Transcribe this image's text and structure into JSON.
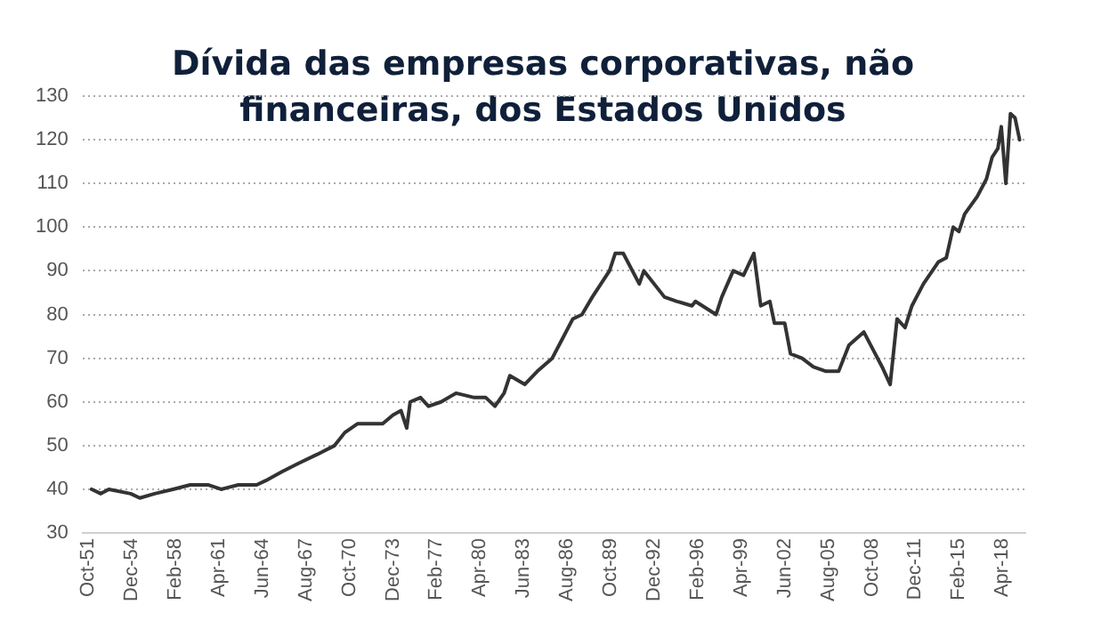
{
  "chart_data": {
    "type": "line",
    "title": "Dívida das empresas corporativas, não financeiras, dos Estados Unidos",
    "x": [
      "1952-01",
      "1952-09",
      "1953-04",
      "1954-11",
      "1955-07",
      "1956-08",
      "1957-12",
      "1959-03",
      "1960-07",
      "1961-06",
      "1962-09",
      "1964-01",
      "1964-09",
      "1965-11",
      "1967-02",
      "1968-06",
      "1969-09",
      "1970-06",
      "1971-05",
      "1972-06",
      "1973-03",
      "1973-12",
      "1974-07",
      "1974-12",
      "1975-03",
      "1975-12",
      "1976-07",
      "1977-06",
      "1978-07",
      "1979-11",
      "1980-09",
      "1981-05",
      "1982-01",
      "1982-06",
      "1983-07",
      "1984-06",
      "1985-07",
      "1986-03",
      "1987-01",
      "1987-09",
      "1988-06",
      "1989-09",
      "1990-02",
      "1990-09",
      "1991-11",
      "1992-03",
      "1993-09",
      "1994-08",
      "1995-09",
      "1995-12",
      "1997-06",
      "1997-11",
      "1998-09",
      "1999-06",
      "2000-03",
      "2000-09",
      "2001-05",
      "2001-09",
      "2002-06",
      "2002-11",
      "2003-09",
      "2004-07",
      "2005-06",
      "2006-05",
      "2007-02",
      "2008-03",
      "2008-11",
      "2009-07",
      "2010-02",
      "2010-08",
      "2011-03",
      "2011-09",
      "2012-07",
      "2013-08",
      "2014-03",
      "2014-09",
      "2015-02",
      "2015-07",
      "2016-06",
      "2017-02",
      "2017-07",
      "2017-12",
      "2018-03",
      "2018-07",
      "2018-11",
      "2019-03",
      "2019-07"
    ],
    "series": [
      {
        "color": "#333333",
        "values": [
          40,
          39,
          40,
          39,
          38,
          39,
          40,
          41,
          41,
          40,
          41,
          41,
          42,
          44,
          46,
          48,
          50,
          53,
          55,
          55,
          55,
          57,
          58,
          54,
          60,
          61,
          59,
          60,
          62,
          61,
          61,
          59,
          62,
          66,
          64,
          67,
          70,
          74,
          79,
          80,
          84,
          90,
          94,
          94,
          87,
          90,
          84,
          83,
          82,
          83,
          80,
          84,
          90,
          89,
          94,
          82,
          83,
          78,
          78,
          71,
          70,
          68,
          67,
          67,
          73,
          76,
          72,
          68,
          64,
          79,
          77,
          82,
          87,
          92,
          93,
          100,
          99,
          103,
          107,
          111,
          116,
          118,
          123,
          110,
          126,
          125,
          120
        ]
      }
    ],
    "xlim": [
      "1951-05",
      "2019-12"
    ],
    "xticks": [
      {
        "value": "1951-10",
        "label": "Oct-51"
      },
      {
        "value": "1954-12",
        "label": "Dec-54"
      },
      {
        "value": "1958-02",
        "label": "Feb-58"
      },
      {
        "value": "1961-04",
        "label": "Apr-61"
      },
      {
        "value": "1964-06",
        "label": "Jun-64"
      },
      {
        "value": "1967-08",
        "label": "Aug-67"
      },
      {
        "value": "1970-10",
        "label": "Oct-70"
      },
      {
        "value": "1973-12",
        "label": "Dec-73"
      },
      {
        "value": "1977-02",
        "label": "Feb-77"
      },
      {
        "value": "1980-04",
        "label": "Apr-80"
      },
      {
        "value": "1983-06",
        "label": "Jun-83"
      },
      {
        "value": "1986-08",
        "label": "Aug-86"
      },
      {
        "value": "1989-10",
        "label": "Oct-89"
      },
      {
        "value": "1992-12",
        "label": "Dec-92"
      },
      {
        "value": "1996-02",
        "label": "Feb-96"
      },
      {
        "value": "1999-04",
        "label": "Apr-99"
      },
      {
        "value": "2002-06",
        "label": "Jun-02"
      },
      {
        "value": "2005-08",
        "label": "Aug-05"
      },
      {
        "value": "2008-10",
        "label": "Oct-08"
      },
      {
        "value": "2011-12",
        "label": "Dec-11"
      },
      {
        "value": "2015-02",
        "label": "Feb-15"
      },
      {
        "value": "2018-04",
        "label": "Apr-18"
      }
    ],
    "ylim": [
      30,
      130
    ],
    "yticks": [
      30,
      40,
      50,
      60,
      70,
      80,
      90,
      100,
      110,
      120,
      130
    ],
    "grid": "y",
    "legend": false,
    "marker": "none",
    "line_style": "solid"
  }
}
